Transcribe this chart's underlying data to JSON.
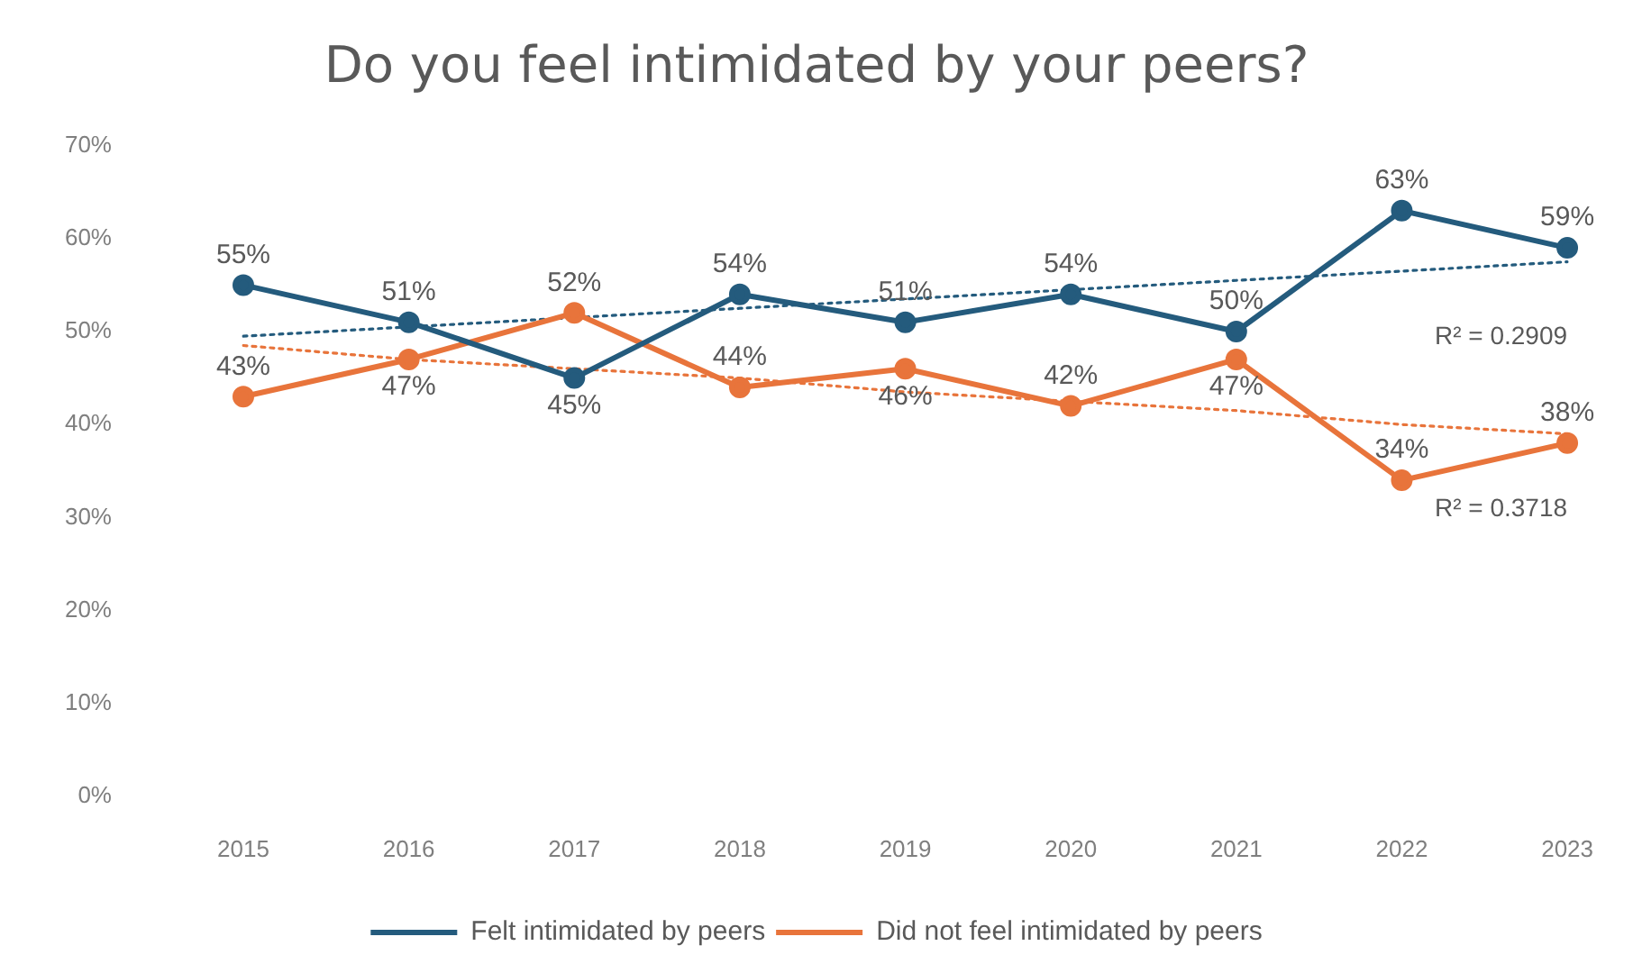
{
  "chart_data": {
    "type": "line",
    "title": "Do you feel intimidated by your peers?",
    "categories": [
      "2015",
      "2016",
      "2017",
      "2018",
      "2019",
      "2020",
      "2021",
      "2022",
      "2023"
    ],
    "series": [
      {
        "name": "Felt intimidated by peers",
        "color": "#245b7d",
        "values": [
          55,
          51,
          45,
          54,
          51,
          54,
          50,
          63,
          59
        ],
        "value_labels": [
          "55%",
          "51%",
          "45%",
          "54%",
          "51%",
          "54%",
          "50%",
          "63%",
          "59%"
        ]
      },
      {
        "name": "Did not feel intimidated by peers",
        "color": "#e8743b",
        "values": [
          43,
          47,
          52,
          44,
          46,
          42,
          47,
          34,
          38
        ],
        "value_labels": [
          "43%",
          "47%",
          "52%",
          "44%",
          "46%",
          "42%",
          "47%",
          "34%",
          "38%"
        ]
      },
      {
        "type": "line",
        "color": "#245b7d",
        "values": [
          49.5,
          50.5,
          51.5,
          52.5,
          53.5,
          54.5,
          55.5,
          56.5,
          57.5
        ],
        "line_style": "dotted",
        "marker": "none"
      },
      {
        "type": "line",
        "color": "#e8743b",
        "values": [
          48.5,
          47,
          46,
          45,
          43.5,
          42.5,
          41.5,
          40,
          39
        ],
        "line_style": "dotted",
        "marker": "none"
      }
    ],
    "annotations": [
      "R² = 0.2909",
      "R² = 0.3718"
    ],
    "ylim": [
      0,
      70
    ],
    "yticks": [
      {
        "value": 0,
        "label": "0%"
      },
      {
        "value": 10,
        "label": "10%"
      },
      {
        "value": 20,
        "label": "20%"
      },
      {
        "value": 30,
        "label": "30%"
      },
      {
        "value": 40,
        "label": "40%"
      },
      {
        "value": 50,
        "label": "50%"
      },
      {
        "value": 60,
        "label": "60%"
      },
      {
        "value": 70,
        "label": "70%"
      }
    ],
    "legend": "bottom",
    "marker": "circle",
    "line_style": "solid"
  }
}
